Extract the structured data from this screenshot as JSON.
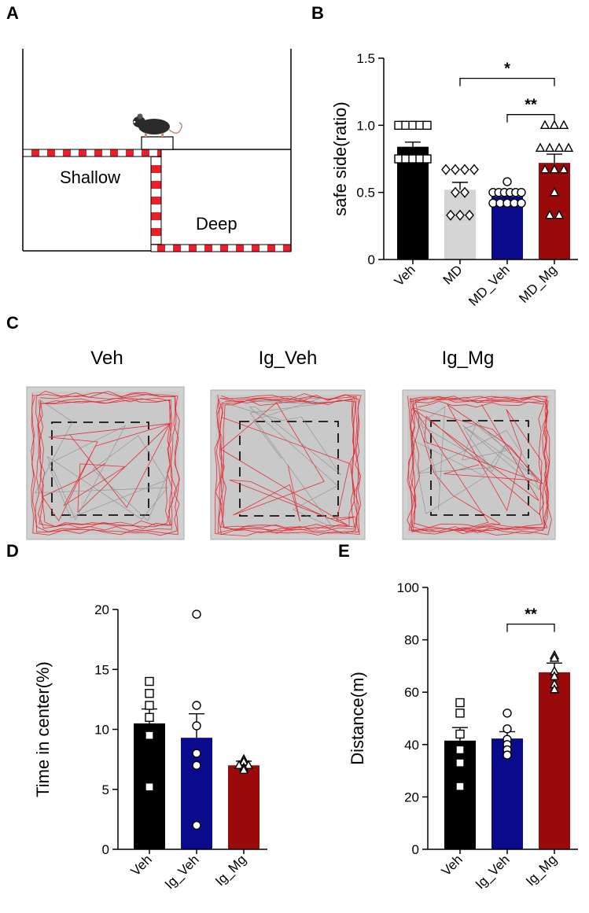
{
  "panel_labels": {
    "a": "A",
    "b": "B",
    "c": "C",
    "d": "D",
    "e": "E"
  },
  "panel_a": {
    "shallow_label": "Shallow",
    "deep_label": "Deep",
    "mouse_icon": "mouse-icon"
  },
  "panel_c": {
    "titles": [
      "Veh",
      "Ig_Veh",
      "Ig_Mg"
    ],
    "track_color": "#e8202a"
  },
  "colors": {
    "veh": "#000000",
    "md": "#d4d4d4",
    "navy": "#0a0a8c",
    "red": "#9b0a0a"
  },
  "chart_data": [
    {
      "id": "B",
      "type": "bar",
      "ylabel": "safe side(ratio)",
      "ylim": [
        0,
        1.5
      ],
      "yticks": [
        0,
        0.5,
        1.0,
        1.5
      ],
      "ytick_labels": [
        "0",
        "0.5",
        "1.0",
        "1.5"
      ],
      "categories": [
        "Veh",
        "MD",
        "MD_Veh",
        "MD_Mg"
      ],
      "values": [
        0.84,
        0.52,
        0.47,
        0.72
      ],
      "errors": [
        0.035,
        0.055,
        0.03,
        0.065
      ],
      "colors": [
        "#000000",
        "#d4d4d4",
        "#0a0a8c",
        "#9b0a0a"
      ],
      "markers": [
        "square",
        "diamond",
        "circle",
        "triangle"
      ],
      "points": [
        [
          1.0,
          1.0,
          1.0,
          1.0,
          1.0,
          0.75,
          0.75,
          0.75,
          0.75,
          0.75
        ],
        [
          0.67,
          0.67,
          0.67,
          0.67,
          0.5,
          0.5,
          0.33,
          0.33,
          0.33
        ],
        [
          0.58,
          0.5,
          0.5,
          0.5,
          0.5,
          0.5,
          0.5,
          0.42,
          0.42,
          0.42,
          0.42,
          0.42
        ],
        [
          1.0,
          1.0,
          1.0,
          0.83,
          0.83,
          0.83,
          0.83,
          0.67,
          0.67,
          0.67,
          0.5,
          0.33,
          0.33
        ]
      ],
      "significance": [
        {
          "from": 1,
          "to": 3,
          "label": "*",
          "y": 1.35
        },
        {
          "from": 2,
          "to": 3,
          "label": "**",
          "y": 1.08
        }
      ]
    },
    {
      "id": "D",
      "type": "bar",
      "ylabel": "Time in center(%)",
      "ylim": [
        0,
        20
      ],
      "yticks": [
        0,
        5,
        10,
        15,
        20
      ],
      "ytick_labels": [
        "0",
        "5",
        "10",
        "15",
        "20"
      ],
      "categories": [
        "Veh",
        "Ig_Veh",
        "Ig_Mg"
      ],
      "values": [
        10.5,
        9.3,
        7.0
      ],
      "errors": [
        1.2,
        2.0,
        0.35
      ],
      "colors": [
        "#000000",
        "#0a0a8c",
        "#9b0a0a"
      ],
      "markers": [
        "square",
        "circle",
        "triangle"
      ],
      "points": [
        [
          14.0,
          13.0,
          12.0,
          11.0,
          9.5,
          5.2
        ],
        [
          19.6,
          12.0,
          10.3,
          8.0,
          7.0,
          2.0
        ],
        [
          7.5,
          7.3,
          7.0,
          7.0,
          6.8,
          6.6
        ]
      ],
      "significance": []
    },
    {
      "id": "E",
      "type": "bar",
      "ylabel": "Distance(m)",
      "ylim": [
        0,
        100
      ],
      "yticks": [
        0,
        20,
        40,
        60,
        80,
        100
      ],
      "ytick_labels": [
        "0",
        "20",
        "40",
        "60",
        "80",
        "100"
      ],
      "categories": [
        "Veh",
        "Ig_Veh",
        "Ig_Mg"
      ],
      "values": [
        41.5,
        42.3,
        67.6
      ],
      "errors": [
        5.0,
        2.6,
        3.5
      ],
      "colors": [
        "#000000",
        "#0a0a8c",
        "#9b0a0a"
      ],
      "markers": [
        "square",
        "circle",
        "triangle"
      ],
      "points": [
        [
          56.0,
          52.0,
          44.0,
          38.0,
          33.0,
          24.0
        ],
        [
          52.0,
          46.0,
          42.0,
          40.0,
          38.0,
          36.0
        ],
        [
          74.0,
          73.0,
          68.0,
          66.0,
          63.0,
          61.0
        ]
      ],
      "significance": [
        {
          "from": 1,
          "to": 2,
          "label": "**",
          "y": 86
        }
      ]
    }
  ]
}
